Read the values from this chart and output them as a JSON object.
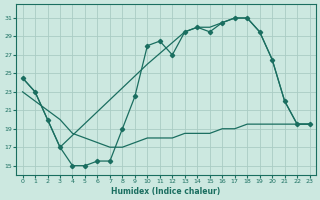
{
  "xlabel": "Humidex (Indice chaleur)",
  "bg_color": "#cce8e0",
  "line_color": "#1a6e60",
  "grid_color": "#aaccc4",
  "xlim": [
    -0.5,
    23.5
  ],
  "ylim": [
    14.0,
    32.5
  ],
  "xticks": [
    0,
    1,
    2,
    3,
    4,
    5,
    6,
    7,
    8,
    9,
    10,
    11,
    12,
    13,
    14,
    15,
    16,
    17,
    18,
    19,
    20,
    21,
    22,
    23
  ],
  "yticks": [
    15,
    17,
    19,
    21,
    23,
    25,
    27,
    29,
    31
  ],
  "jagged_x": [
    0,
    1,
    2,
    3,
    4,
    5,
    6,
    7,
    8,
    9,
    10,
    11,
    12,
    13,
    14,
    15,
    16,
    17,
    18,
    19,
    20,
    21,
    22,
    23
  ],
  "jagged_y": [
    24.5,
    23.0,
    20.0,
    17.0,
    15.0,
    15.0,
    15.5,
    15.5,
    19.0,
    22.5,
    28.0,
    28.5,
    27.0,
    29.5,
    30.0,
    29.5,
    30.5,
    31.0,
    31.0,
    29.5,
    26.5,
    22.0,
    19.5,
    19.5
  ],
  "upper_x": [
    0,
    1,
    2,
    3,
    10,
    13,
    14,
    15,
    17,
    18,
    19,
    20,
    21,
    22,
    23
  ],
  "upper_y": [
    24.5,
    23.0,
    20.0,
    17.0,
    26.0,
    29.5,
    30.0,
    30.0,
    31.0,
    31.0,
    29.5,
    26.5,
    22.0,
    19.5,
    19.5
  ],
  "lower_x": [
    0,
    1,
    2,
    3,
    4,
    5,
    6,
    7,
    8,
    9,
    10,
    11,
    12,
    13,
    14,
    15,
    16,
    17,
    18,
    19,
    20,
    21,
    22,
    23
  ],
  "lower_y": [
    23.0,
    22.0,
    21.0,
    20.0,
    18.5,
    18.0,
    17.5,
    17.0,
    17.0,
    17.5,
    18.0,
    18.0,
    18.0,
    18.5,
    18.5,
    18.5,
    19.0,
    19.0,
    19.5,
    19.5,
    19.5,
    19.5,
    19.5,
    19.5
  ]
}
